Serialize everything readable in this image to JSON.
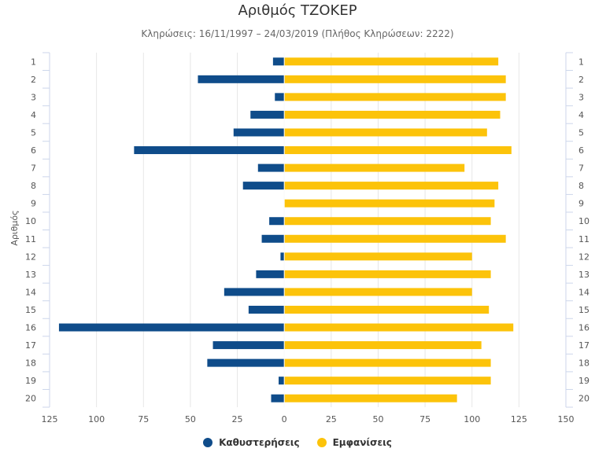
{
  "colors": {
    "delays": "#0f4c8a",
    "appearances": "#fcc30a"
  },
  "chart_data": {
    "type": "bar",
    "title": "Αριθμός ΤΖΟΚΕΡ",
    "subtitle": "Κληρώσεις: 16/11/1997 – 24/03/2019 (Πλήθος Κληρώσεων: 2222)",
    "ylabel": "Αριθμός",
    "xlim": [
      -125,
      150
    ],
    "xticks": [
      "125",
      "100",
      "75",
      "50",
      "25",
      "0",
      "25",
      "50",
      "75",
      "100",
      "125",
      "150"
    ],
    "categories": [
      "1",
      "2",
      "3",
      "4",
      "5",
      "6",
      "7",
      "8",
      "9",
      "10",
      "11",
      "12",
      "13",
      "14",
      "15",
      "16",
      "17",
      "18",
      "19",
      "20"
    ],
    "series": [
      {
        "name": "Καθυστερήσεις",
        "values": [
          6,
          46,
          5,
          18,
          27,
          80,
          14,
          22,
          0,
          8,
          12,
          2,
          15,
          32,
          19,
          120,
          38,
          41,
          3,
          7
        ]
      },
      {
        "name": "Εμφανίσεις",
        "values": [
          114,
          118,
          118,
          115,
          108,
          121,
          96,
          114,
          112,
          110,
          118,
          100,
          110,
          100,
          109,
          122,
          105,
          110,
          110,
          92
        ]
      }
    ]
  }
}
